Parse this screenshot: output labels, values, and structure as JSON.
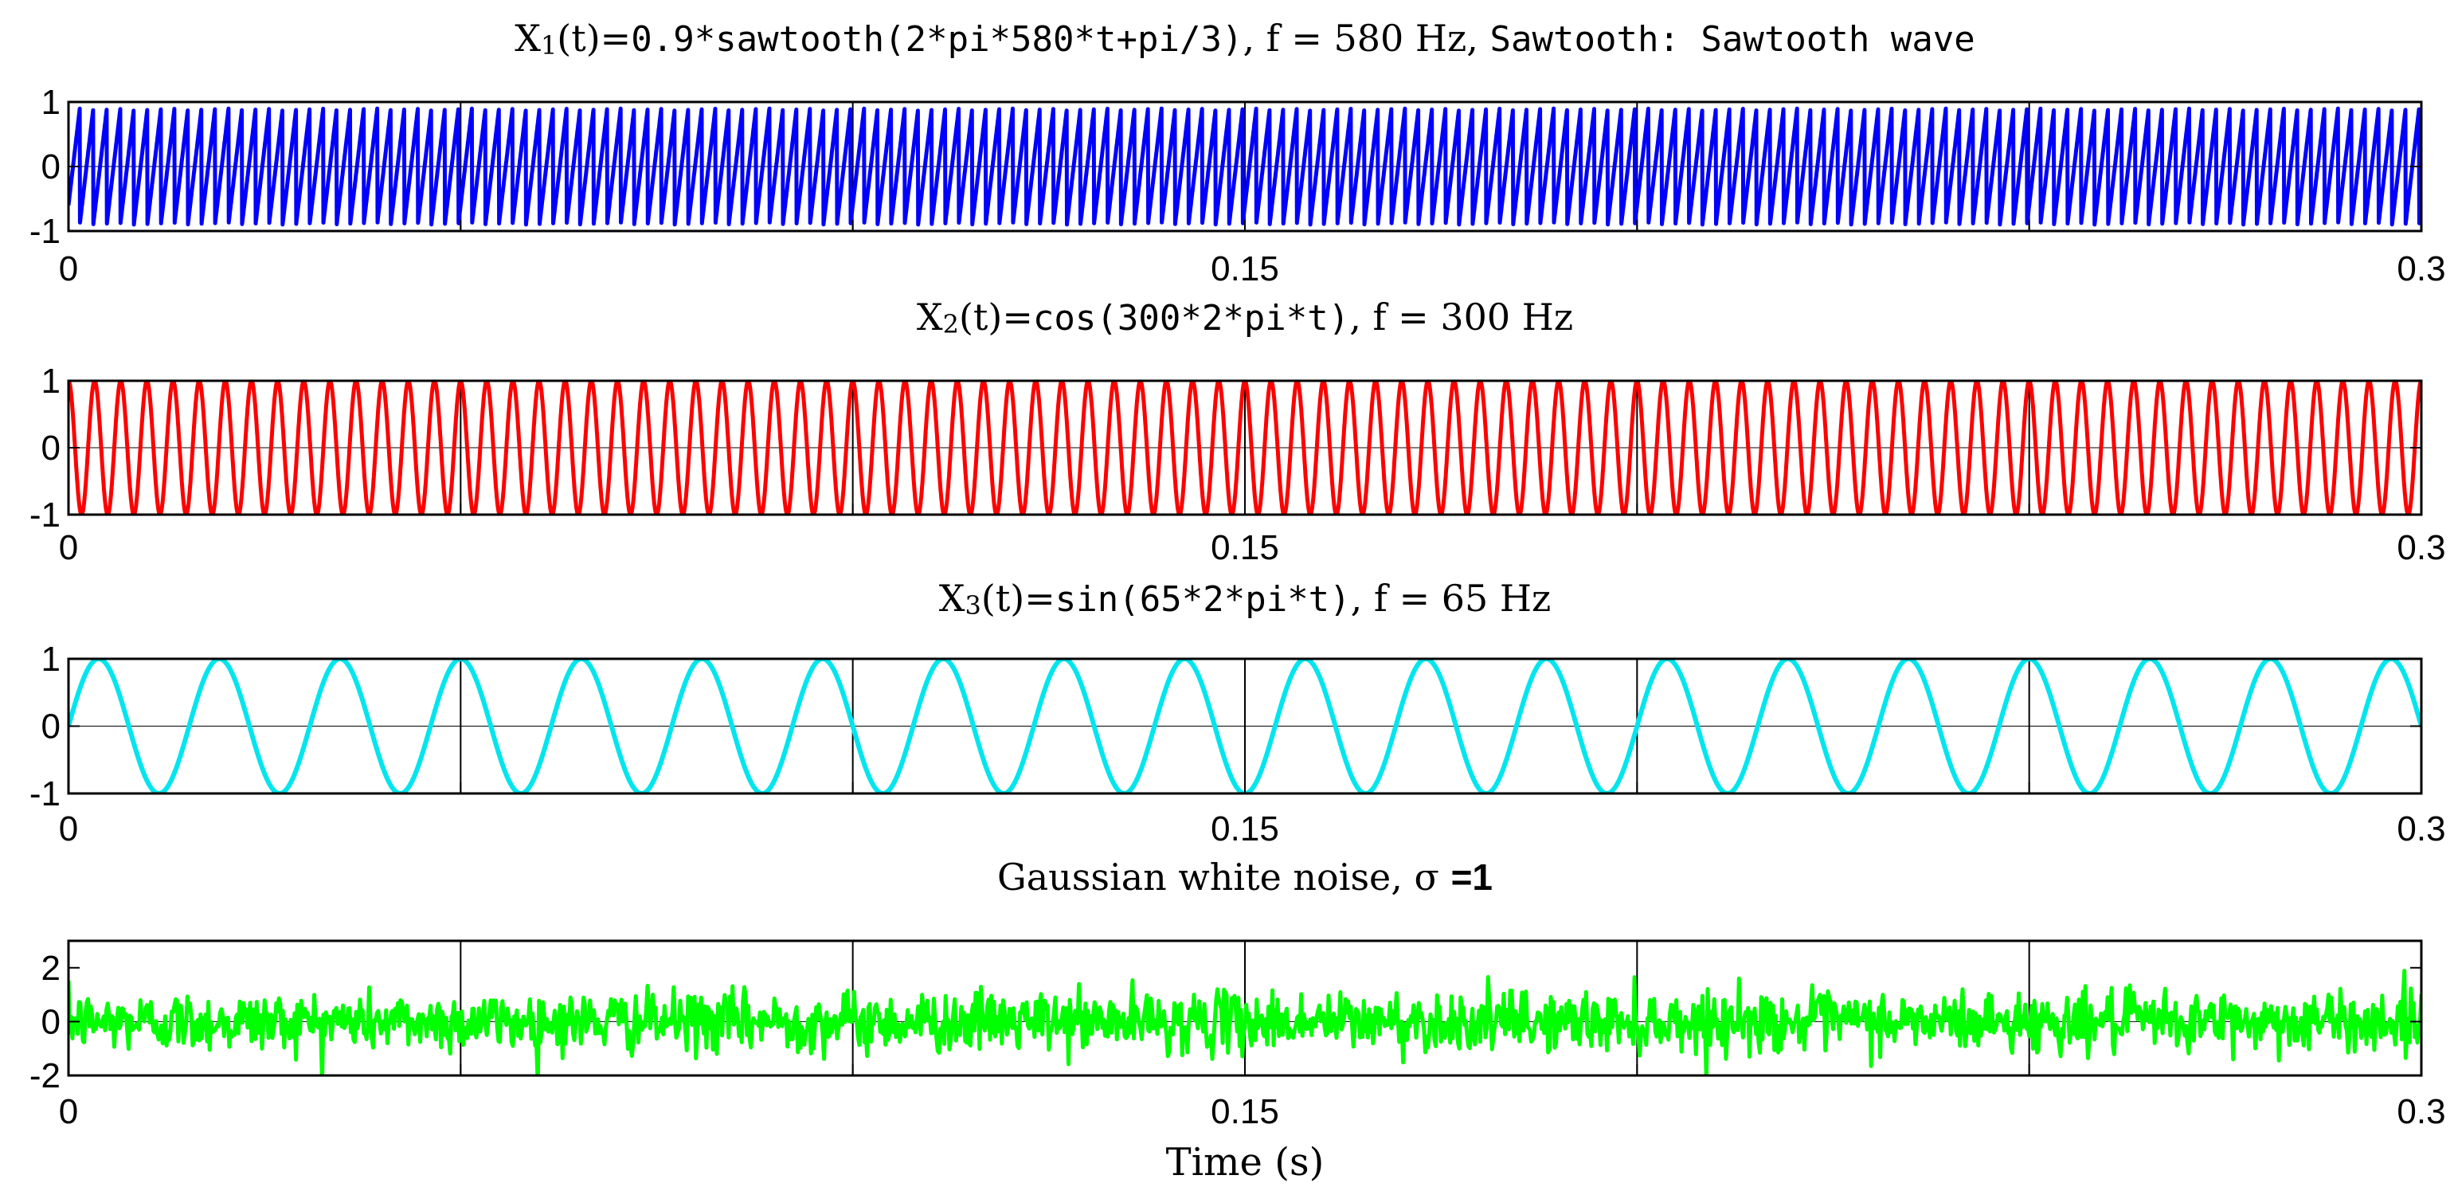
{
  "chart_data": [
    {
      "type": "line",
      "title_parts": [
        {
          "text": "X",
          "style": "serif"
        },
        {
          "text": "1",
          "style": "serif-sub"
        },
        {
          "text": "(t)=",
          "style": "serif"
        },
        {
          "text": "0.9*sawtooth(2*pi*580*t+pi/3)",
          "style": "mono"
        },
        {
          "text": ", f = 580 Hz, ",
          "style": "serif"
        },
        {
          "text": "Sawtooth: Sawtooth wave",
          "style": "mono"
        }
      ],
      "xlabel": "",
      "ylabel": "",
      "xlim": [
        0,
        0.3
      ],
      "ylim": [
        -1,
        1
      ],
      "x_ticks": [
        0,
        0.05,
        0.1,
        0.15,
        0.2,
        0.25,
        0.3
      ],
      "x_tick_labels": [
        "0",
        "",
        "",
        "0.15",
        "",
        "",
        "0.3"
      ],
      "y_ticks": [
        -1,
        0,
        1
      ],
      "y_tick_labels": [
        "-1",
        "0",
        "1"
      ],
      "grid": "vertical",
      "series": [
        {
          "signal": "sawtooth",
          "amplitude": 0.9,
          "frequency_hz": 580,
          "phase": 1.0472,
          "color": "#0000ff"
        }
      ]
    },
    {
      "type": "line",
      "title_parts": [
        {
          "text": "X",
          "style": "serif"
        },
        {
          "text": "2",
          "style": "serif-sub"
        },
        {
          "text": "(t)=",
          "style": "serif"
        },
        {
          "text": "cos(300*2*pi*t)",
          "style": "mono"
        },
        {
          "text": ", f = 300 Hz",
          "style": "serif"
        }
      ],
      "xlabel": "",
      "ylabel": "",
      "xlim": [
        0,
        0.3
      ],
      "ylim": [
        -1,
        1
      ],
      "x_ticks": [
        0,
        0.05,
        0.1,
        0.15,
        0.2,
        0.25,
        0.3
      ],
      "x_tick_labels": [
        "0",
        "",
        "",
        "0.15",
        "",
        "",
        "0.3"
      ],
      "y_ticks": [
        -1,
        0,
        1
      ],
      "y_tick_labels": [
        "-1",
        "0",
        "1"
      ],
      "grid": "vertical",
      "series": [
        {
          "signal": "cos",
          "amplitude": 1,
          "frequency_hz": 300,
          "phase": 0,
          "color": "#ff0000"
        }
      ]
    },
    {
      "type": "line",
      "title_parts": [
        {
          "text": "X",
          "style": "serif"
        },
        {
          "text": "3",
          "style": "serif-sub"
        },
        {
          "text": "(t)=",
          "style": "serif"
        },
        {
          "text": "sin(65*2*pi*t)",
          "style": "mono"
        },
        {
          "text": ", f = 65 Hz",
          "style": "serif"
        }
      ],
      "xlabel": "",
      "ylabel": "",
      "xlim": [
        0,
        0.3
      ],
      "ylim": [
        -1,
        1
      ],
      "x_ticks": [
        0,
        0.05,
        0.1,
        0.15,
        0.2,
        0.25,
        0.3
      ],
      "x_tick_labels": [
        "0",
        "",
        "",
        "0.15",
        "",
        "",
        "0.3"
      ],
      "y_ticks": [
        -1,
        0,
        1
      ],
      "y_tick_labels": [
        "-1",
        "0",
        "1"
      ],
      "grid": "vertical",
      "series": [
        {
          "signal": "sin",
          "amplitude": 1,
          "frequency_hz": 65,
          "phase": 0,
          "color": "#00e5ee"
        }
      ]
    },
    {
      "type": "line",
      "title_parts": [
        {
          "text": "Gaussian white noise,  σ ",
          "style": "serif"
        },
        {
          "text": "=1",
          "style": "sans-bold"
        }
      ],
      "xlabel": "Time (s)",
      "ylabel": "",
      "xlim": [
        0,
        0.3
      ],
      "ylim": [
        -2,
        3
      ],
      "x_ticks": [
        0,
        0.05,
        0.1,
        0.15,
        0.2,
        0.25,
        0.3
      ],
      "x_tick_labels": [
        "0",
        "",
        "",
        "0.15",
        "",
        "",
        "0.3"
      ],
      "y_ticks": [
        -2,
        0,
        2
      ],
      "y_tick_labels": [
        "-2",
        "0",
        "2"
      ],
      "grid": "vertical",
      "series": [
        {
          "signal": "gaussian_noise",
          "sigma": 1,
          "mean": 0,
          "color": "#00ff00"
        }
      ]
    }
  ]
}
